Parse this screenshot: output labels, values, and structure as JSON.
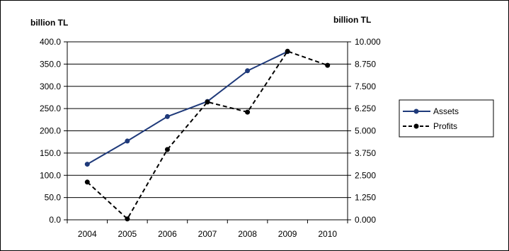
{
  "chart_data": {
    "type": "line",
    "categories": [
      "2004",
      "2005",
      "2006",
      "2007",
      "2008",
      "2009",
      "2010"
    ],
    "y_left": {
      "unit_label": "billion TL",
      "range": [
        0,
        400
      ],
      "ticks": [
        "0.0",
        "50.0",
        "100.0",
        "150.0",
        "200.0",
        "250.0",
        "300.0",
        "350.0",
        "400.0"
      ]
    },
    "y_right": {
      "unit_label": "billion TL",
      "range": [
        0,
        10
      ],
      "ticks": [
        "0.000",
        "1.250",
        "2.500",
        "3.750",
        "5.000",
        "6.250",
        "7.500",
        "8.750",
        "10.000"
      ]
    },
    "series": [
      {
        "name": "Assets",
        "axis": "left",
        "color": "#1f3a7a",
        "line_style": "solid",
        "values": [
          125,
          177,
          232,
          266,
          335,
          378,
          null
        ]
      },
      {
        "name": "Profits",
        "axis": "right",
        "color": "#000000",
        "line_style": "dashed",
        "values": [
          2.12,
          0.05,
          3.95,
          6.62,
          6.05,
          9.47,
          8.68
        ]
      }
    ],
    "grid": true,
    "legend_position": "right"
  }
}
